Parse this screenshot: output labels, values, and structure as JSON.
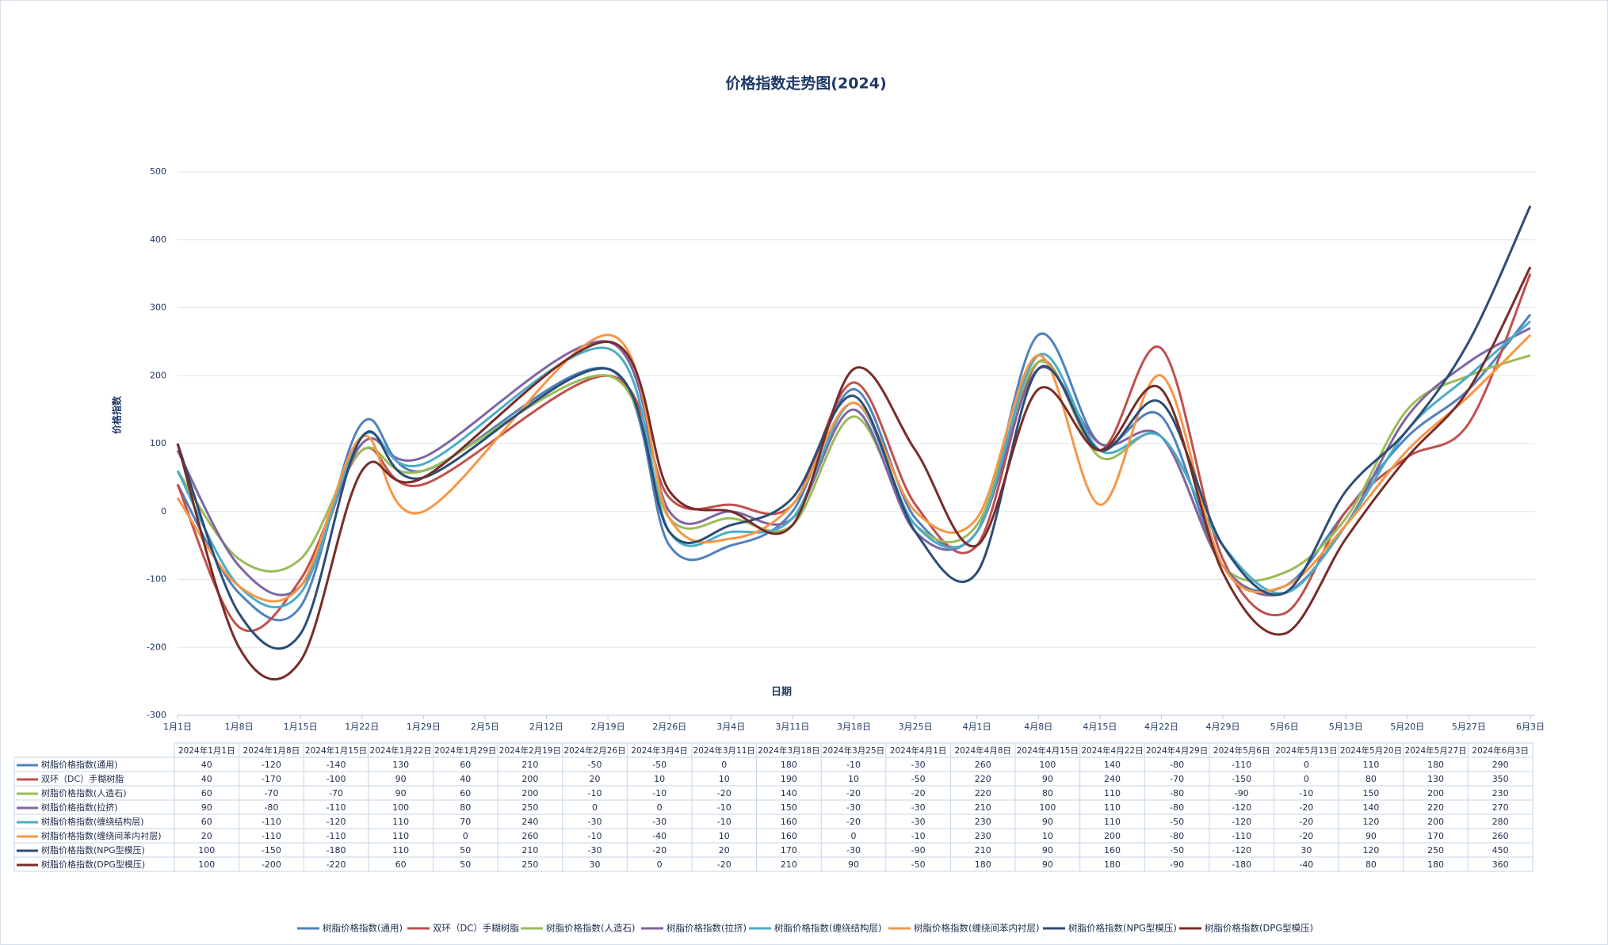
{
  "chart_data": {
    "type": "line",
    "title": "价格指数走势图(2024)",
    "y_label": "价格指数",
    "x_label": "日期",
    "x": [
      "2024年1月1日",
      "2024年1月8日",
      "2024年1月15日",
      "2024年1月22日",
      "2024年1月29日",
      "2024年2月19日",
      "2024年2月26日",
      "2024年3月4日",
      "2024年3月11日",
      "2024年3月18日",
      "2024年3月25日",
      "2024年4月1日",
      "2024年4月8日",
      "2024年4月15日",
      "2024年4月22日",
      "2024年4月29日",
      "2024年5月6日",
      "2024年5月13日",
      "2024年5月20日",
      "2024年5月27日",
      "2024年6月3日"
    ],
    "xlim": [
      "2024-01-01",
      "2024-06-03"
    ],
    "xticks": [
      {
        "value": "2024-01-01",
        "label": "1月1日"
      },
      {
        "value": "2024-01-08",
        "label": "1月8日"
      },
      {
        "value": "2024-01-15",
        "label": "1月15日"
      },
      {
        "value": "2024-01-22",
        "label": "1月22日"
      },
      {
        "value": "2024-01-29",
        "label": "1月29日"
      },
      {
        "value": "2024-02-05",
        "label": "2月5日"
      },
      {
        "value": "2024-02-12",
        "label": "2月12日"
      },
      {
        "value": "2024-02-19",
        "label": "2月19日"
      },
      {
        "value": "2024-02-26",
        "label": "2月26日"
      },
      {
        "value": "2024-03-04",
        "label": "3月4日"
      },
      {
        "value": "2024-03-11",
        "label": "3月11日"
      },
      {
        "value": "2024-03-18",
        "label": "3月18日"
      },
      {
        "value": "2024-03-25",
        "label": "3月25日"
      },
      {
        "value": "2024-04-01",
        "label": "4月1日"
      },
      {
        "value": "2024-04-08",
        "label": "4月8日"
      },
      {
        "value": "2024-04-15",
        "label": "4月15日"
      },
      {
        "value": "2024-04-22",
        "label": "4月22日"
      },
      {
        "value": "2024-04-29",
        "label": "4月29日"
      },
      {
        "value": "2024-05-06",
        "label": "5月6日"
      },
      {
        "value": "2024-05-13",
        "label": "5月13日"
      },
      {
        "value": "2024-05-20",
        "label": "5月20日"
      },
      {
        "value": "2024-05-27",
        "label": "5月27日"
      },
      {
        "value": "2024-06-03",
        "label": "6月3日"
      }
    ],
    "ylim": [
      -300,
      500
    ],
    "yticks": [
      -300,
      -200,
      -100,
      0,
      100,
      200,
      300,
      400,
      500
    ],
    "grid": true,
    "smooth": true,
    "legend": "bottom",
    "series": [
      {
        "name": "树脂价格指数(通用)",
        "color": "#4f81bd",
        "values": [
          40,
          -120,
          -140,
          130,
          60,
          210,
          -50,
          -50,
          0,
          180,
          -10,
          -30,
          260,
          100,
          140,
          -80,
          -110,
          0,
          110,
          180,
          290
        ]
      },
      {
        "name": "双环（DC）手糊树脂",
        "color": "#c0504d",
        "values": [
          40,
          -170,
          -100,
          90,
          40,
          200,
          20,
          10,
          10,
          190,
          10,
          -50,
          220,
          90,
          240,
          -70,
          -150,
          0,
          80,
          130,
          350
        ]
      },
      {
        "name": "树脂价格指数(人造石)",
        "color": "#9bbb59",
        "values": [
          60,
          -70,
          -70,
          90,
          60,
          200,
          -10,
          -10,
          -20,
          140,
          -20,
          -20,
          220,
          80,
          110,
          -80,
          -90,
          -10,
          150,
          200,
          230
        ]
      },
      {
        "name": "树脂价格指数(拉挤)",
        "color": "#8064a2",
        "values": [
          90,
          -80,
          -110,
          100,
          80,
          250,
          0,
          0,
          -10,
          150,
          -30,
          -30,
          210,
          100,
          110,
          -80,
          -120,
          -20,
          140,
          220,
          270
        ]
      },
      {
        "name": "树脂价格指数(缠绕结构层)",
        "color": "#4bacc6",
        "values": [
          60,
          -110,
          -120,
          110,
          70,
          240,
          -30,
          -30,
          -10,
          160,
          -20,
          -30,
          230,
          90,
          110,
          -50,
          -120,
          -20,
          120,
          200,
          280
        ]
      },
      {
        "name": "树脂价格指数(缠绕间苯内衬层)",
        "color": "#f79646",
        "values": [
          20,
          -110,
          -110,
          110,
          0,
          260,
          -10,
          -40,
          10,
          160,
          0,
          -10,
          230,
          10,
          200,
          -80,
          -110,
          -20,
          90,
          170,
          260
        ]
      },
      {
        "name": "树脂价格指数(NPG型模压)",
        "color": "#2c4d75",
        "values": [
          100,
          -150,
          -180,
          110,
          50,
          210,
          -30,
          -20,
          20,
          170,
          -30,
          -90,
          210,
          90,
          160,
          -50,
          -120,
          30,
          120,
          250,
          450
        ]
      },
      {
        "name": "树脂价格指数(DPG型模压)",
        "color": "#772c2a",
        "values": [
          100,
          -200,
          -220,
          60,
          50,
          250,
          30,
          0,
          -20,
          210,
          90,
          -50,
          180,
          90,
          180,
          -90,
          -180,
          -40,
          80,
          180,
          360
        ]
      }
    ]
  }
}
